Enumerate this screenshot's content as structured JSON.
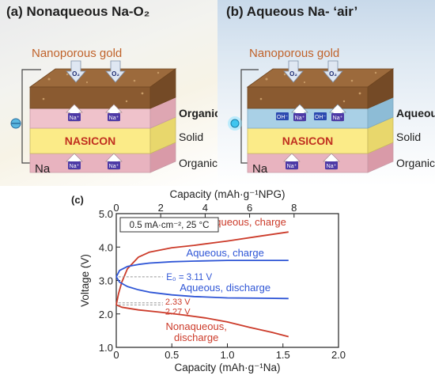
{
  "panel_a": {
    "title": "(a) Nonaqueous Na-O₂",
    "electrode_label": "Nanoporous gold",
    "gas_label": "O₂",
    "ion_label": "Na⁺",
    "solid_label": "NASICON",
    "anode_label": "Na",
    "layer_labels": {
      "top": "Organic",
      "middle": "Solid",
      "bottom": "Organic"
    }
  },
  "panel_b": {
    "title": "(b) Aqueous Na- ‘air’",
    "electrode_label": "Nanoporous gold",
    "gas_label": "O₂",
    "ion_label": "Na⁺",
    "hydroxide_label": "OH⁻",
    "solid_label": "NASICON",
    "anode_label": "Na",
    "layer_labels": {
      "top": "Aqueous",
      "middle": "Solid",
      "bottom": "Organic"
    }
  },
  "panel_c": {
    "label": "(c)",
    "condition": "0.5 mA·cm⁻², 25 °C",
    "e0_label": "E₀ = 3.11 V",
    "v233_label": "2.33 V",
    "v227_label": "2.27 V"
  },
  "colors": {
    "nonaqueous": "#cc3b2a",
    "aqueous": "#2f56d6",
    "reference": "#999999"
  },
  "chart_data": {
    "type": "line",
    "xlabel": "Capacity (mAh·g⁻¹Na)",
    "x2label": "Capacity (mAh·g⁻¹NPG)",
    "ylabel": "Voltage (V)",
    "xlim": [
      0,
      2.0
    ],
    "x2lim": [
      0,
      10
    ],
    "ylim": [
      1.0,
      5.0
    ],
    "xticks": [
      "0",
      "0.5",
      "1.0",
      "1.5",
      "2.0"
    ],
    "x2ticks": [
      "0",
      "2",
      "4",
      "6",
      "8"
    ],
    "yticks": [
      "1.0",
      "2.0",
      "3.0",
      "4.0",
      "5.0"
    ],
    "series": [
      {
        "name": "Nonaqueous, charge",
        "group": "nonaqueous",
        "x": [
          0,
          0.02,
          0.05,
          0.1,
          0.2,
          0.3,
          0.5,
          0.7,
          1.0,
          1.3,
          1.55
        ],
        "y": [
          2.27,
          2.6,
          2.95,
          3.35,
          3.7,
          3.85,
          3.98,
          4.05,
          4.18,
          4.33,
          4.45
        ]
      },
      {
        "name": "Nonaqueous, discharge",
        "group": "nonaqueous",
        "x": [
          0,
          0.05,
          0.2,
          0.4,
          0.6,
          0.8,
          1.0,
          1.2,
          1.4,
          1.55
        ],
        "y": [
          2.27,
          2.2,
          2.12,
          2.05,
          1.97,
          1.88,
          1.76,
          1.6,
          1.45,
          1.32
        ]
      },
      {
        "name": "Aqueous, charge",
        "group": "aqueous",
        "x": [
          0,
          0.03,
          0.1,
          0.2,
          0.3,
          0.5,
          0.7,
          1.0,
          1.3,
          1.55
        ],
        "y": [
          3.11,
          3.3,
          3.42,
          3.48,
          3.52,
          3.56,
          3.58,
          3.6,
          3.6,
          3.6
        ]
      },
      {
        "name": "Aqueous, discharge",
        "group": "aqueous",
        "x": [
          0,
          0.03,
          0.1,
          0.2,
          0.3,
          0.5,
          0.7,
          1.0,
          1.3,
          1.55
        ],
        "y": [
          3.11,
          2.95,
          2.82,
          2.72,
          2.65,
          2.57,
          2.52,
          2.48,
          2.47,
          2.46
        ]
      }
    ]
  }
}
